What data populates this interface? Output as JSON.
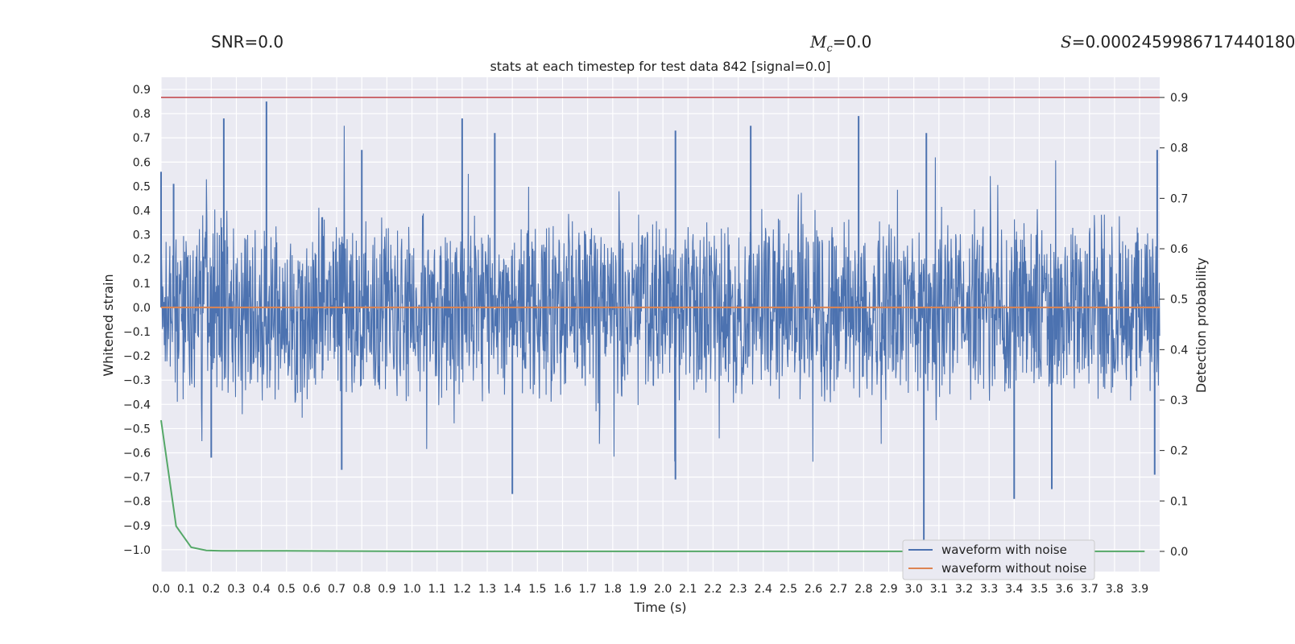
{
  "header": {
    "snr_label": "SNR=0.0",
    "mc_symbol": "M",
    "mc_subscript": "c",
    "mc_value": "=0.0",
    "s_symbol": "S",
    "s_value": "=0.0002459986717440180"
  },
  "colors": {
    "waveform_noise": "#4c72b0",
    "waveform_clean": "#dd8452",
    "probability": "#55a868",
    "threshold": "#c44e52",
    "plot_bg": "#eaeaf2",
    "grid": "#ffffff"
  },
  "chart_data": {
    "type": "line",
    "title": "stats at each timestep for test data 842 [signal=0.0]",
    "xlabel": "Time (s)",
    "ylabel": "Whitened strain",
    "y2label": "Detection probability",
    "xlim": [
      0.0,
      3.98
    ],
    "ylim": [
      -1.09,
      0.95
    ],
    "y2lim": [
      -0.04,
      0.94
    ],
    "x_ticks": [
      "0.0",
      "0.1",
      "0.2",
      "0.3",
      "0.4",
      "0.5",
      "0.6",
      "0.7",
      "0.8",
      "0.9",
      "1.0",
      "1.1",
      "1.2",
      "1.3",
      "1.4",
      "1.5",
      "1.6",
      "1.7",
      "1.8",
      "1.9",
      "2.0",
      "2.1",
      "2.2",
      "2.3",
      "2.4",
      "2.5",
      "2.6",
      "2.7",
      "2.8",
      "2.9",
      "3.0",
      "3.1",
      "3.2",
      "3.3",
      "3.4",
      "3.5",
      "3.6",
      "3.7",
      "3.8",
      "3.9"
    ],
    "y_ticks": [
      "0.9",
      "0.8",
      "0.7",
      "0.6",
      "0.5",
      "0.4",
      "0.3",
      "0.2",
      "0.1",
      "0.0",
      "−0.1",
      "−0.2",
      "−0.3",
      "−0.4",
      "−0.5",
      "−0.6",
      "−0.7",
      "−0.8",
      "−0.9",
      "−1.0"
    ],
    "y2_ticks": [
      "0.9",
      "0.8",
      "0.7",
      "0.6",
      "0.5",
      "0.4",
      "0.3",
      "0.2",
      "0.1",
      "0.0"
    ],
    "grid": true,
    "legend_position": "lower-right",
    "series": [
      {
        "name": "waveform with noise",
        "axis": "left",
        "style": "dense noise",
        "sample_rate_hz": 2048,
        "envelope": {
          "typical_max": 0.3,
          "typical_min": -0.3
        },
        "peaks": [
          {
            "x": 0.0,
            "y": 0.56
          },
          {
            "x": 0.05,
            "y": 0.51
          },
          {
            "x": 0.25,
            "y": 0.78
          },
          {
            "x": 0.42,
            "y": 0.85
          },
          {
            "x": 0.8,
            "y": 0.65
          },
          {
            "x": 1.2,
            "y": 0.78
          },
          {
            "x": 1.33,
            "y": 0.72
          },
          {
            "x": 2.05,
            "y": 0.73
          },
          {
            "x": 2.35,
            "y": 0.75
          },
          {
            "x": 2.78,
            "y": 0.79
          },
          {
            "x": 3.05,
            "y": 0.72
          },
          {
            "x": 3.97,
            "y": 0.65
          }
        ],
        "troughs": [
          {
            "x": 0.2,
            "y": -0.62
          },
          {
            "x": 0.72,
            "y": -0.67
          },
          {
            "x": 1.4,
            "y": -0.77
          },
          {
            "x": 2.05,
            "y": -0.71
          },
          {
            "x": 3.04,
            "y": -1.0
          },
          {
            "x": 3.4,
            "y": -0.79
          },
          {
            "x": 3.55,
            "y": -0.75
          },
          {
            "x": 3.96,
            "y": -0.69
          }
        ]
      },
      {
        "name": "waveform without noise",
        "axis": "left",
        "x": [
          0.0,
          3.98
        ],
        "y": [
          0.0,
          0.0
        ]
      },
      {
        "axis": "right",
        "x": [
          0.0,
          0.06,
          0.12,
          0.18,
          0.24,
          0.5,
          1.0,
          2.0,
          3.0,
          3.92
        ],
        "y": [
          0.26,
          0.05,
          0.008,
          0.002,
          0.001,
          0.001,
          0.0,
          0.0,
          0.0,
          0.0
        ]
      },
      {
        "axis": "right",
        "x": [
          0.0,
          3.98
        ],
        "y": [
          0.9,
          0.9
        ]
      }
    ]
  }
}
